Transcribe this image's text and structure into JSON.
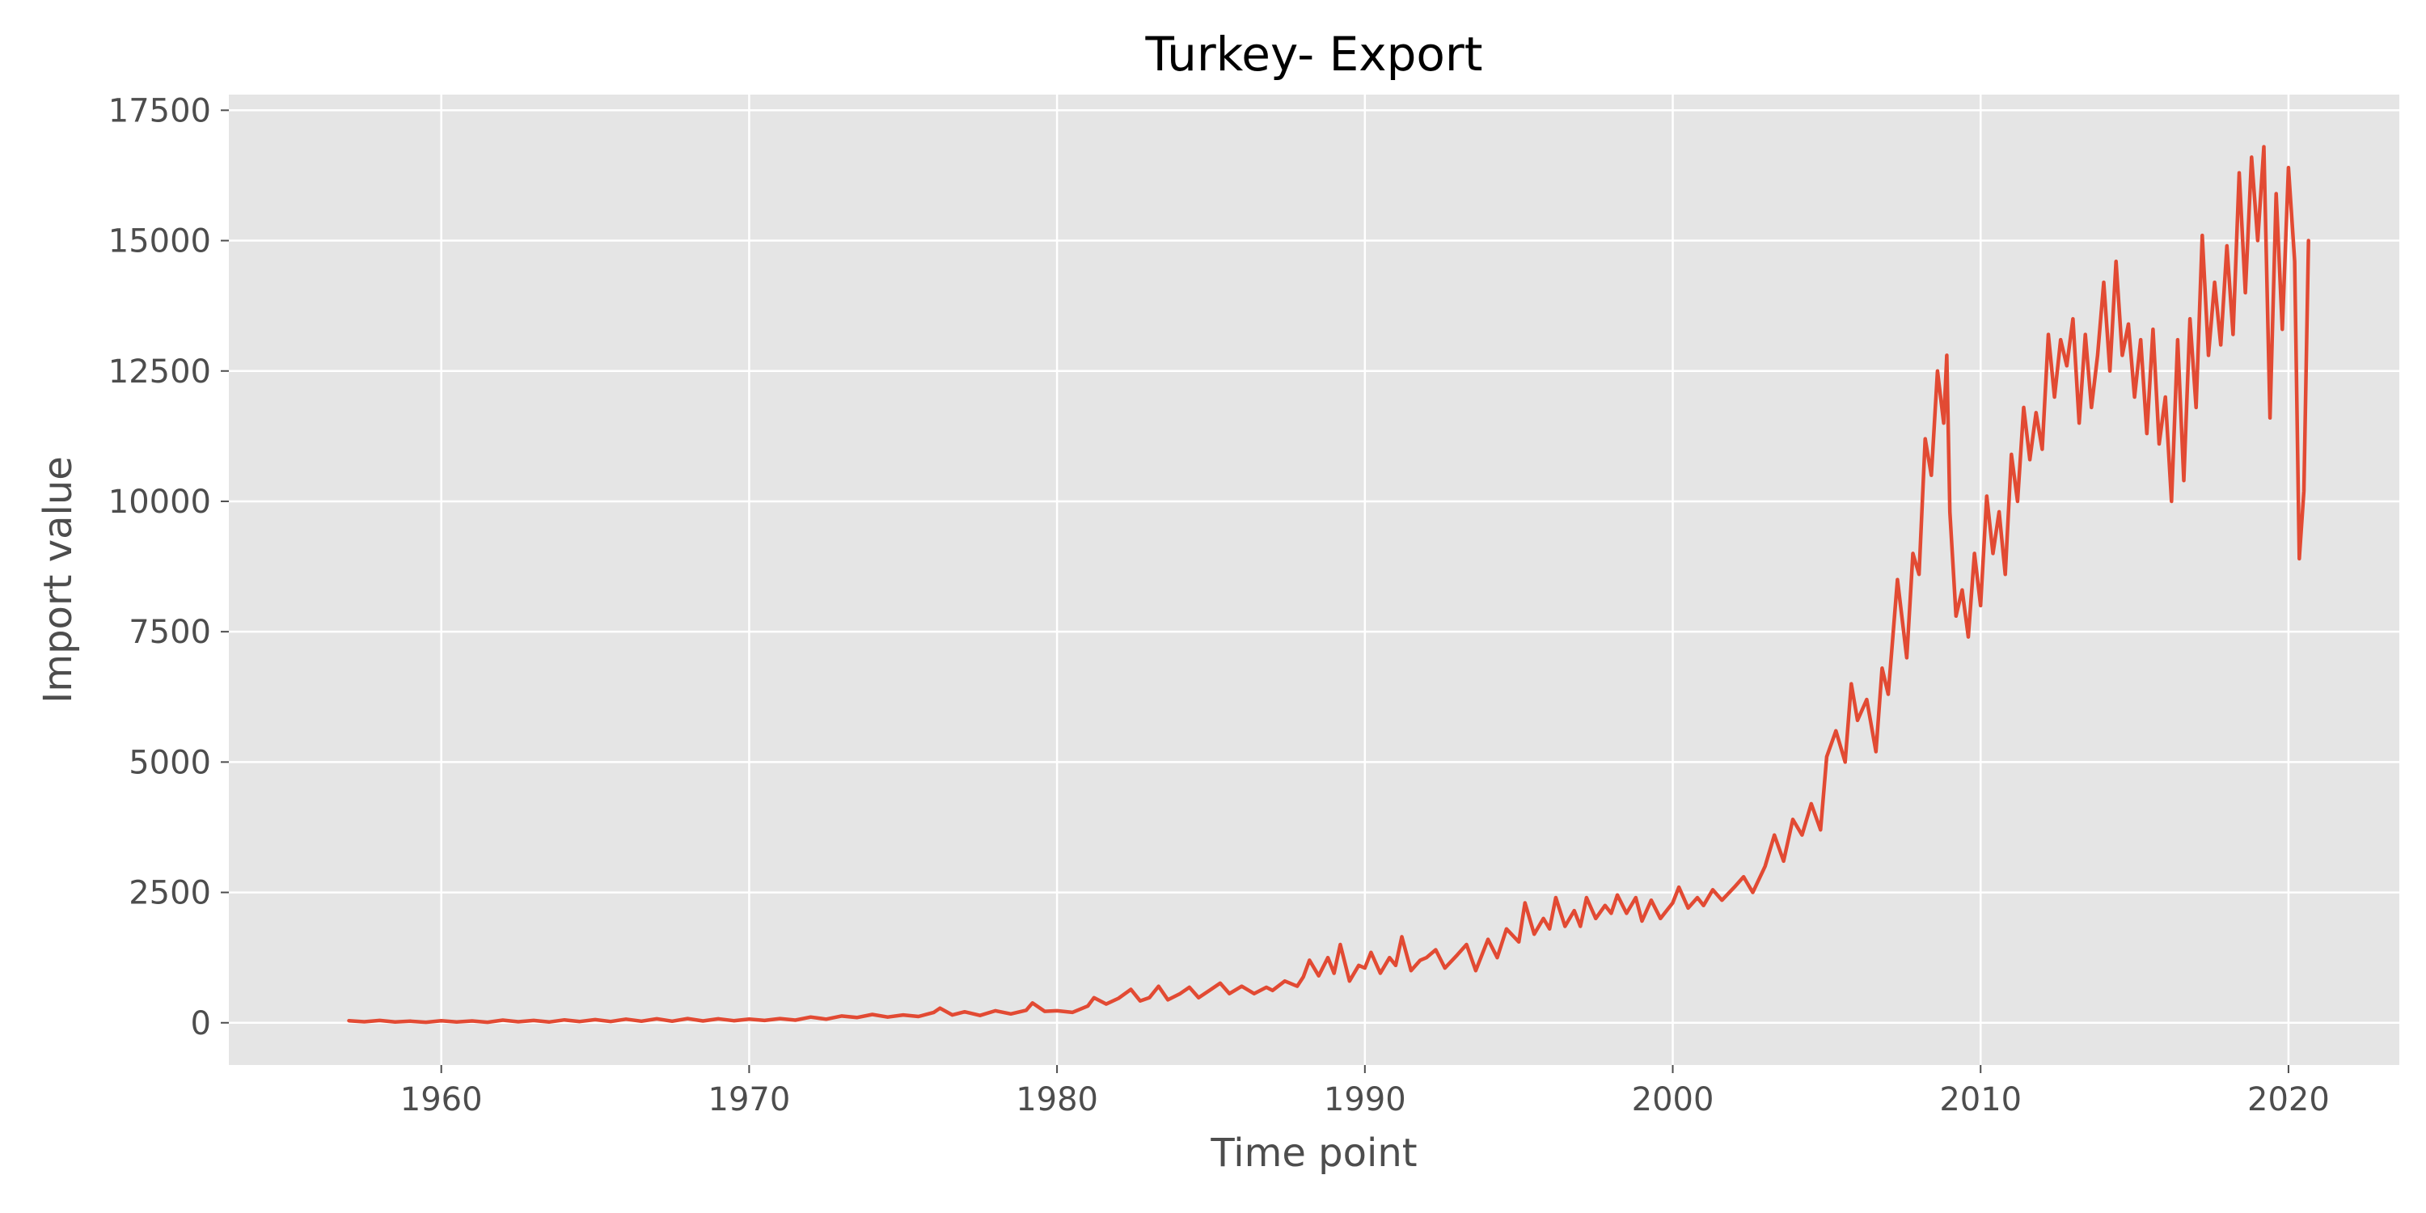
{
  "chart_data": {
    "type": "line",
    "title": "Turkey- Export",
    "xlabel": "Time point",
    "ylabel": "Import value",
    "xlim": [
      1953.1,
      2023.6
    ],
    "ylim": [
      -810,
      17800
    ],
    "xticks": [
      1960,
      1970,
      1980,
      1990,
      2000,
      2010,
      2020
    ],
    "yticks": [
      0,
      2500,
      5000,
      7500,
      10000,
      12500,
      15000,
      17500
    ],
    "xtick_labels": [
      "1960",
      "1970",
      "1980",
      "1990",
      "2000",
      "2010",
      "2020"
    ],
    "ytick_labels": [
      "0",
      "2500",
      "5000",
      "7500",
      "10000",
      "12500",
      "15000",
      "17500"
    ],
    "grid": true,
    "background": "#e5e5e5",
    "series": [
      {
        "color": "#e24a33",
        "points": [
          [
            1957.0,
            40
          ],
          [
            1957.5,
            20
          ],
          [
            1958.0,
            45
          ],
          [
            1958.5,
            15
          ],
          [
            1959.0,
            30
          ],
          [
            1959.5,
            10
          ],
          [
            1960.0,
            40
          ],
          [
            1960.5,
            15
          ],
          [
            1961.0,
            35
          ],
          [
            1961.5,
            10
          ],
          [
            1962.0,
            50
          ],
          [
            1962.5,
            20
          ],
          [
            1963.0,
            45
          ],
          [
            1963.5,
            15
          ],
          [
            1964.0,
            55
          ],
          [
            1964.5,
            25
          ],
          [
            1965.0,
            60
          ],
          [
            1965.5,
            25
          ],
          [
            1966.0,
            70
          ],
          [
            1966.5,
            30
          ],
          [
            1967.0,
            75
          ],
          [
            1967.5,
            30
          ],
          [
            1968.0,
            80
          ],
          [
            1968.5,
            35
          ],
          [
            1969.0,
            75
          ],
          [
            1969.5,
            40
          ],
          [
            1970.0,
            70
          ],
          [
            1970.5,
            45
          ],
          [
            1971.0,
            80
          ],
          [
            1971.5,
            50
          ],
          [
            1972.0,
            110
          ],
          [
            1972.5,
            70
          ],
          [
            1973.0,
            130
          ],
          [
            1973.5,
            100
          ],
          [
            1974.0,
            160
          ],
          [
            1974.5,
            110
          ],
          [
            1975.0,
            150
          ],
          [
            1975.5,
            120
          ],
          [
            1976.0,
            200
          ],
          [
            1976.2,
            280
          ],
          [
            1976.6,
            150
          ],
          [
            1977.0,
            210
          ],
          [
            1977.5,
            140
          ],
          [
            1978.0,
            230
          ],
          [
            1978.5,
            170
          ],
          [
            1979.0,
            240
          ],
          [
            1979.2,
            380
          ],
          [
            1979.6,
            220
          ],
          [
            1980.0,
            230
          ],
          [
            1980.5,
            200
          ],
          [
            1981.0,
            320
          ],
          [
            1981.2,
            480
          ],
          [
            1981.6,
            360
          ],
          [
            1982.0,
            470
          ],
          [
            1982.4,
            640
          ],
          [
            1982.7,
            420
          ],
          [
            1983.0,
            480
          ],
          [
            1983.3,
            700
          ],
          [
            1983.6,
            440
          ],
          [
            1984.0,
            560
          ],
          [
            1984.3,
            680
          ],
          [
            1984.6,
            480
          ],
          [
            1985.0,
            640
          ],
          [
            1985.3,
            760
          ],
          [
            1985.6,
            560
          ],
          [
            1986.0,
            700
          ],
          [
            1986.4,
            560
          ],
          [
            1986.8,
            680
          ],
          [
            1987.0,
            620
          ],
          [
            1987.4,
            800
          ],
          [
            1987.8,
            700
          ],
          [
            1988.0,
            880
          ],
          [
            1988.2,
            1200
          ],
          [
            1988.5,
            900
          ],
          [
            1988.8,
            1250
          ],
          [
            1989.0,
            950
          ],
          [
            1989.2,
            1500
          ],
          [
            1989.5,
            800
          ],
          [
            1989.8,
            1100
          ],
          [
            1990.0,
            1050
          ],
          [
            1990.2,
            1350
          ],
          [
            1990.5,
            950
          ],
          [
            1990.8,
            1250
          ],
          [
            1991.0,
            1100
          ],
          [
            1991.2,
            1650
          ],
          [
            1991.5,
            1000
          ],
          [
            1991.8,
            1200
          ],
          [
            1992.0,
            1250
          ],
          [
            1992.3,
            1400
          ],
          [
            1992.6,
            1050
          ],
          [
            1993.0,
            1300
          ],
          [
            1993.3,
            1500
          ],
          [
            1993.6,
            1000
          ],
          [
            1994.0,
            1600
          ],
          [
            1994.3,
            1250
          ],
          [
            1994.6,
            1800
          ],
          [
            1995.0,
            1550
          ],
          [
            1995.2,
            2300
          ],
          [
            1995.5,
            1700
          ],
          [
            1995.8,
            2000
          ],
          [
            1996.0,
            1800
          ],
          [
            1996.2,
            2400
          ],
          [
            1996.5,
            1850
          ],
          [
            1996.8,
            2150
          ],
          [
            1997.0,
            1850
          ],
          [
            1997.2,
            2400
          ],
          [
            1997.5,
            2000
          ],
          [
            1997.8,
            2250
          ],
          [
            1998.0,
            2100
          ],
          [
            1998.2,
            2450
          ],
          [
            1998.5,
            2100
          ],
          [
            1998.8,
            2400
          ],
          [
            1999.0,
            1950
          ],
          [
            1999.3,
            2350
          ],
          [
            1999.6,
            2000
          ],
          [
            2000.0,
            2300
          ],
          [
            2000.2,
            2600
          ],
          [
            2000.5,
            2200
          ],
          [
            2000.8,
            2400
          ],
          [
            2001.0,
            2250
          ],
          [
            2001.3,
            2550
          ],
          [
            2001.6,
            2350
          ],
          [
            2002.0,
            2600
          ],
          [
            2002.3,
            2800
          ],
          [
            2002.6,
            2500
          ],
          [
            2003.0,
            3000
          ],
          [
            2003.3,
            3600
          ],
          [
            2003.6,
            3100
          ],
          [
            2003.9,
            3900
          ],
          [
            2004.2,
            3600
          ],
          [
            2004.5,
            4200
          ],
          [
            2004.8,
            3700
          ],
          [
            2005.0,
            5100
          ],
          [
            2005.3,
            5600
          ],
          [
            2005.6,
            5000
          ],
          [
            2005.8,
            6500
          ],
          [
            2006.0,
            5800
          ],
          [
            2006.3,
            6200
          ],
          [
            2006.6,
            5200
          ],
          [
            2006.8,
            6800
          ],
          [
            2007.0,
            6300
          ],
          [
            2007.3,
            8500
          ],
          [
            2007.6,
            7000
          ],
          [
            2007.8,
            9000
          ],
          [
            2008.0,
            8600
          ],
          [
            2008.2,
            11200
          ],
          [
            2008.4,
            10500
          ],
          [
            2008.6,
            12500
          ],
          [
            2008.8,
            11500
          ],
          [
            2008.9,
            12800
          ],
          [
            2009.0,
            9800
          ],
          [
            2009.2,
            7800
          ],
          [
            2009.4,
            8300
          ],
          [
            2009.6,
            7400
          ],
          [
            2009.8,
            9000
          ],
          [
            2010.0,
            8000
          ],
          [
            2010.2,
            10100
          ],
          [
            2010.4,
            9000
          ],
          [
            2010.6,
            9800
          ],
          [
            2010.8,
            8600
          ],
          [
            2011.0,
            10900
          ],
          [
            2011.2,
            10000
          ],
          [
            2011.4,
            11800
          ],
          [
            2011.6,
            10800
          ],
          [
            2011.8,
            11700
          ],
          [
            2012.0,
            11000
          ],
          [
            2012.2,
            13200
          ],
          [
            2012.4,
            12000
          ],
          [
            2012.6,
            13100
          ],
          [
            2012.8,
            12600
          ],
          [
            2013.0,
            13500
          ],
          [
            2013.2,
            11500
          ],
          [
            2013.4,
            13200
          ],
          [
            2013.6,
            11800
          ],
          [
            2013.8,
            12800
          ],
          [
            2014.0,
            14200
          ],
          [
            2014.2,
            12500
          ],
          [
            2014.4,
            14600
          ],
          [
            2014.6,
            12800
          ],
          [
            2014.8,
            13400
          ],
          [
            2015.0,
            12000
          ],
          [
            2015.2,
            13100
          ],
          [
            2015.4,
            11300
          ],
          [
            2015.6,
            13300
          ],
          [
            2015.8,
            11100
          ],
          [
            2016.0,
            12000
          ],
          [
            2016.2,
            10000
          ],
          [
            2016.4,
            13100
          ],
          [
            2016.6,
            10400
          ],
          [
            2016.8,
            13500
          ],
          [
            2017.0,
            11800
          ],
          [
            2017.2,
            15100
          ],
          [
            2017.4,
            12800
          ],
          [
            2017.6,
            14200
          ],
          [
            2017.8,
            13000
          ],
          [
            2018.0,
            14900
          ],
          [
            2018.2,
            13200
          ],
          [
            2018.4,
            16300
          ],
          [
            2018.6,
            14000
          ],
          [
            2018.8,
            16600
          ],
          [
            2019.0,
            15000
          ],
          [
            2019.2,
            16800
          ],
          [
            2019.4,
            11600
          ],
          [
            2019.6,
            15900
          ],
          [
            2019.8,
            13300
          ],
          [
            2020.0,
            16400
          ],
          [
            2020.2,
            14600
          ],
          [
            2020.35,
            8900
          ],
          [
            2020.5,
            10200
          ],
          [
            2020.65,
            15000
          ]
        ]
      }
    ]
  }
}
